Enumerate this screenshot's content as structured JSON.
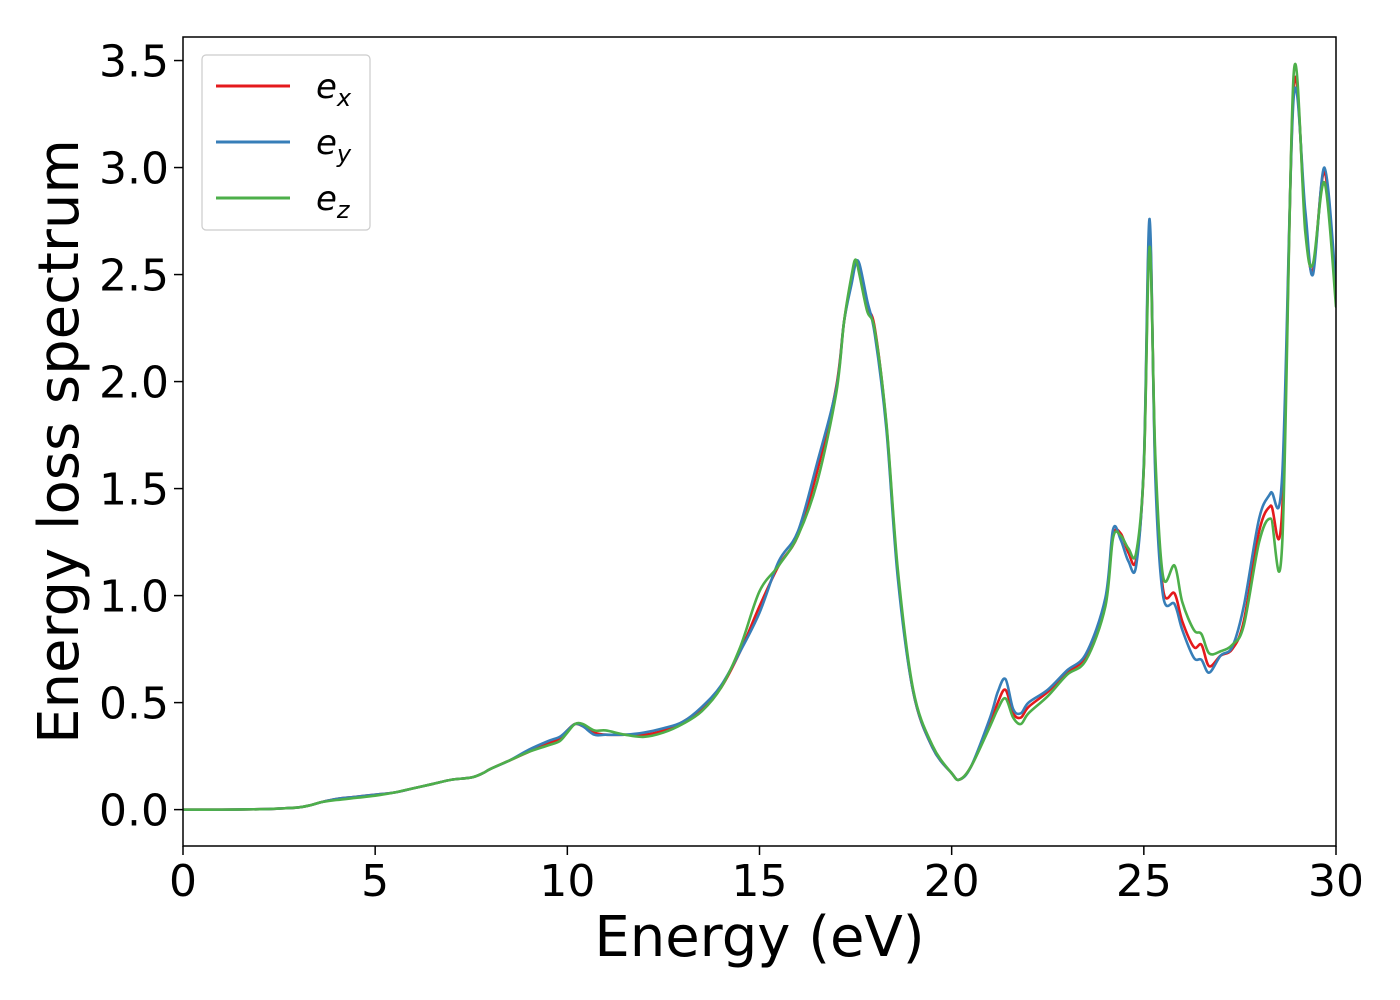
{
  "chart_data": {
    "type": "line",
    "title": "",
    "xlabel": "Energy (eV)",
    "ylabel": "Energy loss spectrum",
    "xlim": [
      0,
      30
    ],
    "ylim": [
      -0.17,
      3.61
    ],
    "xticks": [
      0,
      5,
      10,
      15,
      20,
      25,
      30
    ],
    "yticks": [
      0.0,
      0.5,
      1.0,
      1.5,
      2.0,
      2.5,
      3.0,
      3.5
    ],
    "xtick_labels": [
      "0",
      "5",
      "10",
      "15",
      "20",
      "25",
      "30"
    ],
    "ytick_labels": [
      "0.0",
      "0.5",
      "1.0",
      "1.5",
      "2.0",
      "2.5",
      "3.0",
      "3.5"
    ],
    "grid": false,
    "legend": {
      "placement": "top-left"
    },
    "x": [
      0,
      1,
      2,
      2.5,
      3,
      3.3,
      3.6,
      4,
      4.5,
      5,
      5.5,
      6,
      6.5,
      7,
      7.5,
      7.8,
      8,
      8.5,
      9,
      9.5,
      9.8,
      10,
      10.2,
      10.4,
      10.7,
      11,
      11.5,
      12,
      12.5,
      13,
      13.5,
      14,
      14.5,
      15,
      15.5,
      16,
      16.5,
      17,
      17.2,
      17.4,
      17.5,
      17.6,
      17.8,
      18,
      18.3,
      18.6,
      19,
      19.5,
      20,
      20.2,
      20.5,
      21,
      21.2,
      21.4,
      21.6,
      21.8,
      22,
      22.5,
      23,
      23.5,
      24,
      24.2,
      24.4,
      24.6,
      24.8,
      25,
      25.15,
      25.3,
      25.5,
      25.8,
      26,
      26.3,
      26.5,
      26.7,
      27,
      27.3,
      27.6,
      28,
      28.3,
      28.6,
      28.9,
      29.2,
      29.4,
      29.7,
      30
    ],
    "series": [
      {
        "name": "e",
        "subscript": "x",
        "color": "#e41a1c",
        "values": [
          0,
          0,
          0.002,
          0.005,
          0.01,
          0.02,
          0.035,
          0.05,
          0.06,
          0.07,
          0.08,
          0.1,
          0.12,
          0.14,
          0.15,
          0.17,
          0.19,
          0.23,
          0.27,
          0.31,
          0.33,
          0.37,
          0.4,
          0.39,
          0.36,
          0.35,
          0.35,
          0.35,
          0.37,
          0.41,
          0.47,
          0.57,
          0.74,
          0.95,
          1.14,
          1.28,
          1.58,
          1.98,
          2.28,
          2.48,
          2.55,
          2.52,
          2.35,
          2.25,
          1.8,
          1.1,
          0.55,
          0.29,
          0.17,
          0.14,
          0.2,
          0.4,
          0.5,
          0.56,
          0.45,
          0.43,
          0.48,
          0.55,
          0.64,
          0.72,
          0.98,
          1.28,
          1.29,
          1.2,
          1.17,
          1.6,
          2.7,
          1.6,
          1.03,
          1.01,
          0.88,
          0.76,
          0.77,
          0.67,
          0.72,
          0.75,
          0.88,
          1.3,
          1.42,
          1.4,
          3.38,
          2.75,
          2.52,
          2.98,
          2.4
        ]
      },
      {
        "name": "e",
        "subscript": "y",
        "color": "#377eb8",
        "values": [
          0,
          0,
          0.002,
          0.005,
          0.01,
          0.02,
          0.035,
          0.05,
          0.06,
          0.07,
          0.08,
          0.1,
          0.12,
          0.14,
          0.15,
          0.17,
          0.19,
          0.23,
          0.28,
          0.32,
          0.34,
          0.37,
          0.4,
          0.39,
          0.35,
          0.35,
          0.35,
          0.36,
          0.38,
          0.41,
          0.48,
          0.58,
          0.74,
          0.92,
          1.16,
          1.3,
          1.62,
          1.97,
          2.28,
          2.46,
          2.55,
          2.55,
          2.38,
          2.22,
          1.78,
          1.08,
          0.55,
          0.29,
          0.17,
          0.14,
          0.2,
          0.43,
          0.55,
          0.61,
          0.47,
          0.45,
          0.5,
          0.56,
          0.65,
          0.73,
          0.99,
          1.31,
          1.26,
          1.16,
          1.14,
          1.62,
          2.76,
          1.55,
          1.0,
          0.96,
          0.84,
          0.71,
          0.7,
          0.64,
          0.72,
          0.76,
          0.95,
          1.36,
          1.48,
          1.56,
          3.33,
          2.8,
          2.5,
          3.0,
          2.45
        ]
      },
      {
        "name": "e",
        "subscript": "z",
        "color": "#4daf4a",
        "values": [
          0,
          0,
          0.002,
          0.005,
          0.01,
          0.02,
          0.035,
          0.045,
          0.055,
          0.065,
          0.08,
          0.1,
          0.12,
          0.14,
          0.15,
          0.17,
          0.19,
          0.23,
          0.27,
          0.3,
          0.32,
          0.36,
          0.4,
          0.4,
          0.37,
          0.37,
          0.35,
          0.34,
          0.36,
          0.4,
          0.46,
          0.57,
          0.76,
          1.02,
          1.14,
          1.28,
          1.53,
          1.95,
          2.28,
          2.5,
          2.57,
          2.5,
          2.33,
          2.24,
          1.81,
          1.12,
          0.56,
          0.3,
          0.17,
          0.14,
          0.2,
          0.39,
          0.47,
          0.52,
          0.43,
          0.4,
          0.45,
          0.53,
          0.63,
          0.7,
          0.95,
          1.27,
          1.28,
          1.22,
          1.2,
          1.6,
          2.63,
          1.65,
          1.09,
          1.14,
          0.97,
          0.84,
          0.82,
          0.73,
          0.74,
          0.77,
          0.86,
          1.25,
          1.36,
          1.24,
          3.44,
          2.7,
          2.55,
          2.93,
          2.35
        ]
      }
    ]
  }
}
